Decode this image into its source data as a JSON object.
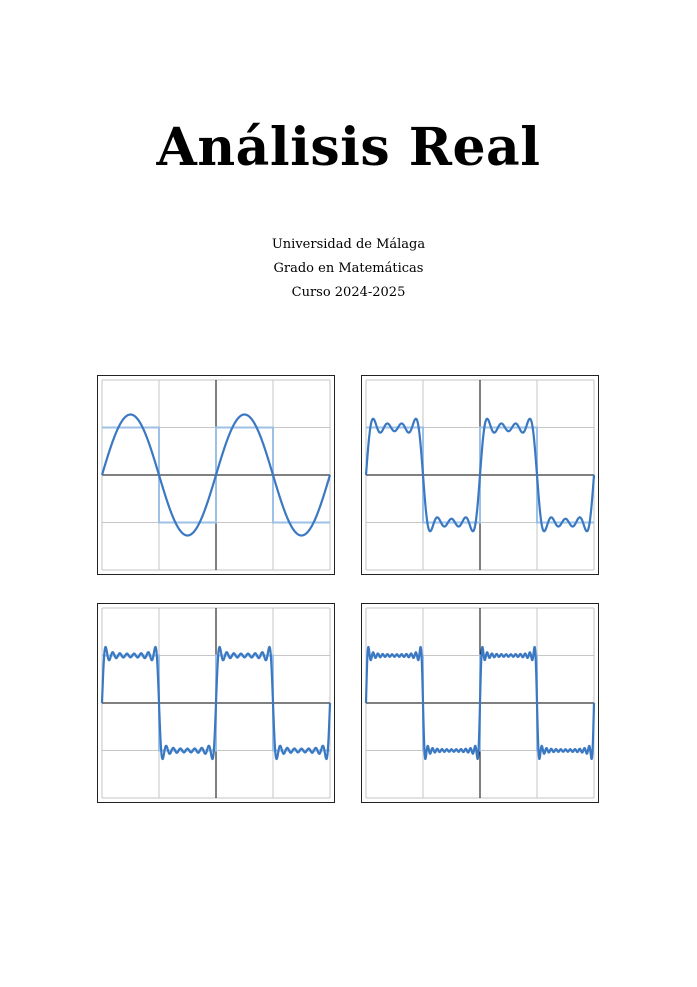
{
  "document": {
    "title": "Análisis Real",
    "subtitle_lines": [
      "Universidad de Málaga",
      "Grado en Matemáticas",
      "Curso 2024-2025"
    ]
  },
  "colors": {
    "approximation": "#3a78c2",
    "square_wave": "#9cc0e6",
    "grid": "#c6c6c6",
    "axis": "#000000",
    "frame": "#222222"
  },
  "chart_data": [
    {
      "type": "line",
      "title": "",
      "xlabel": "",
      "ylabel": "",
      "xlim": [
        -2,
        2
      ],
      "ylim": [
        -2,
        2
      ],
      "grid": true,
      "series": [
        {
          "role": "square-wave",
          "period": 2,
          "amplitude": 1
        },
        {
          "role": "fourier-approximation",
          "period": 2,
          "harmonics": [
            1
          ]
        }
      ]
    },
    {
      "type": "line",
      "title": "",
      "xlabel": "",
      "ylabel": "",
      "xlim": [
        -2,
        2
      ],
      "ylim": [
        -2,
        2
      ],
      "grid": true,
      "series": [
        {
          "role": "square-wave",
          "period": 2,
          "amplitude": 1
        },
        {
          "role": "fourier-approximation",
          "period": 2,
          "harmonics": [
            1,
            3,
            5,
            7
          ]
        }
      ]
    },
    {
      "type": "line",
      "title": "",
      "xlabel": "",
      "ylabel": "",
      "xlim": [
        -2,
        2
      ],
      "ylim": [
        -2,
        2
      ],
      "grid": true,
      "series": [
        {
          "role": "square-wave",
          "period": 2,
          "amplitude": 1
        },
        {
          "role": "fourier-approximation",
          "period": 2,
          "harmonics": [
            1,
            3,
            5,
            7,
            9,
            11,
            13,
            15
          ]
        }
      ]
    },
    {
      "type": "line",
      "title": "",
      "xlabel": "",
      "ylabel": "",
      "xlim": [
        -2,
        2
      ],
      "ylim": [
        -2,
        2
      ],
      "grid": true,
      "series": [
        {
          "role": "square-wave",
          "period": 2,
          "amplitude": 1
        },
        {
          "role": "fourier-approximation",
          "period": 2,
          "harmonics": [
            1,
            3,
            5,
            7,
            9,
            11,
            13,
            15,
            17,
            19,
            21,
            23
          ]
        }
      ]
    }
  ]
}
